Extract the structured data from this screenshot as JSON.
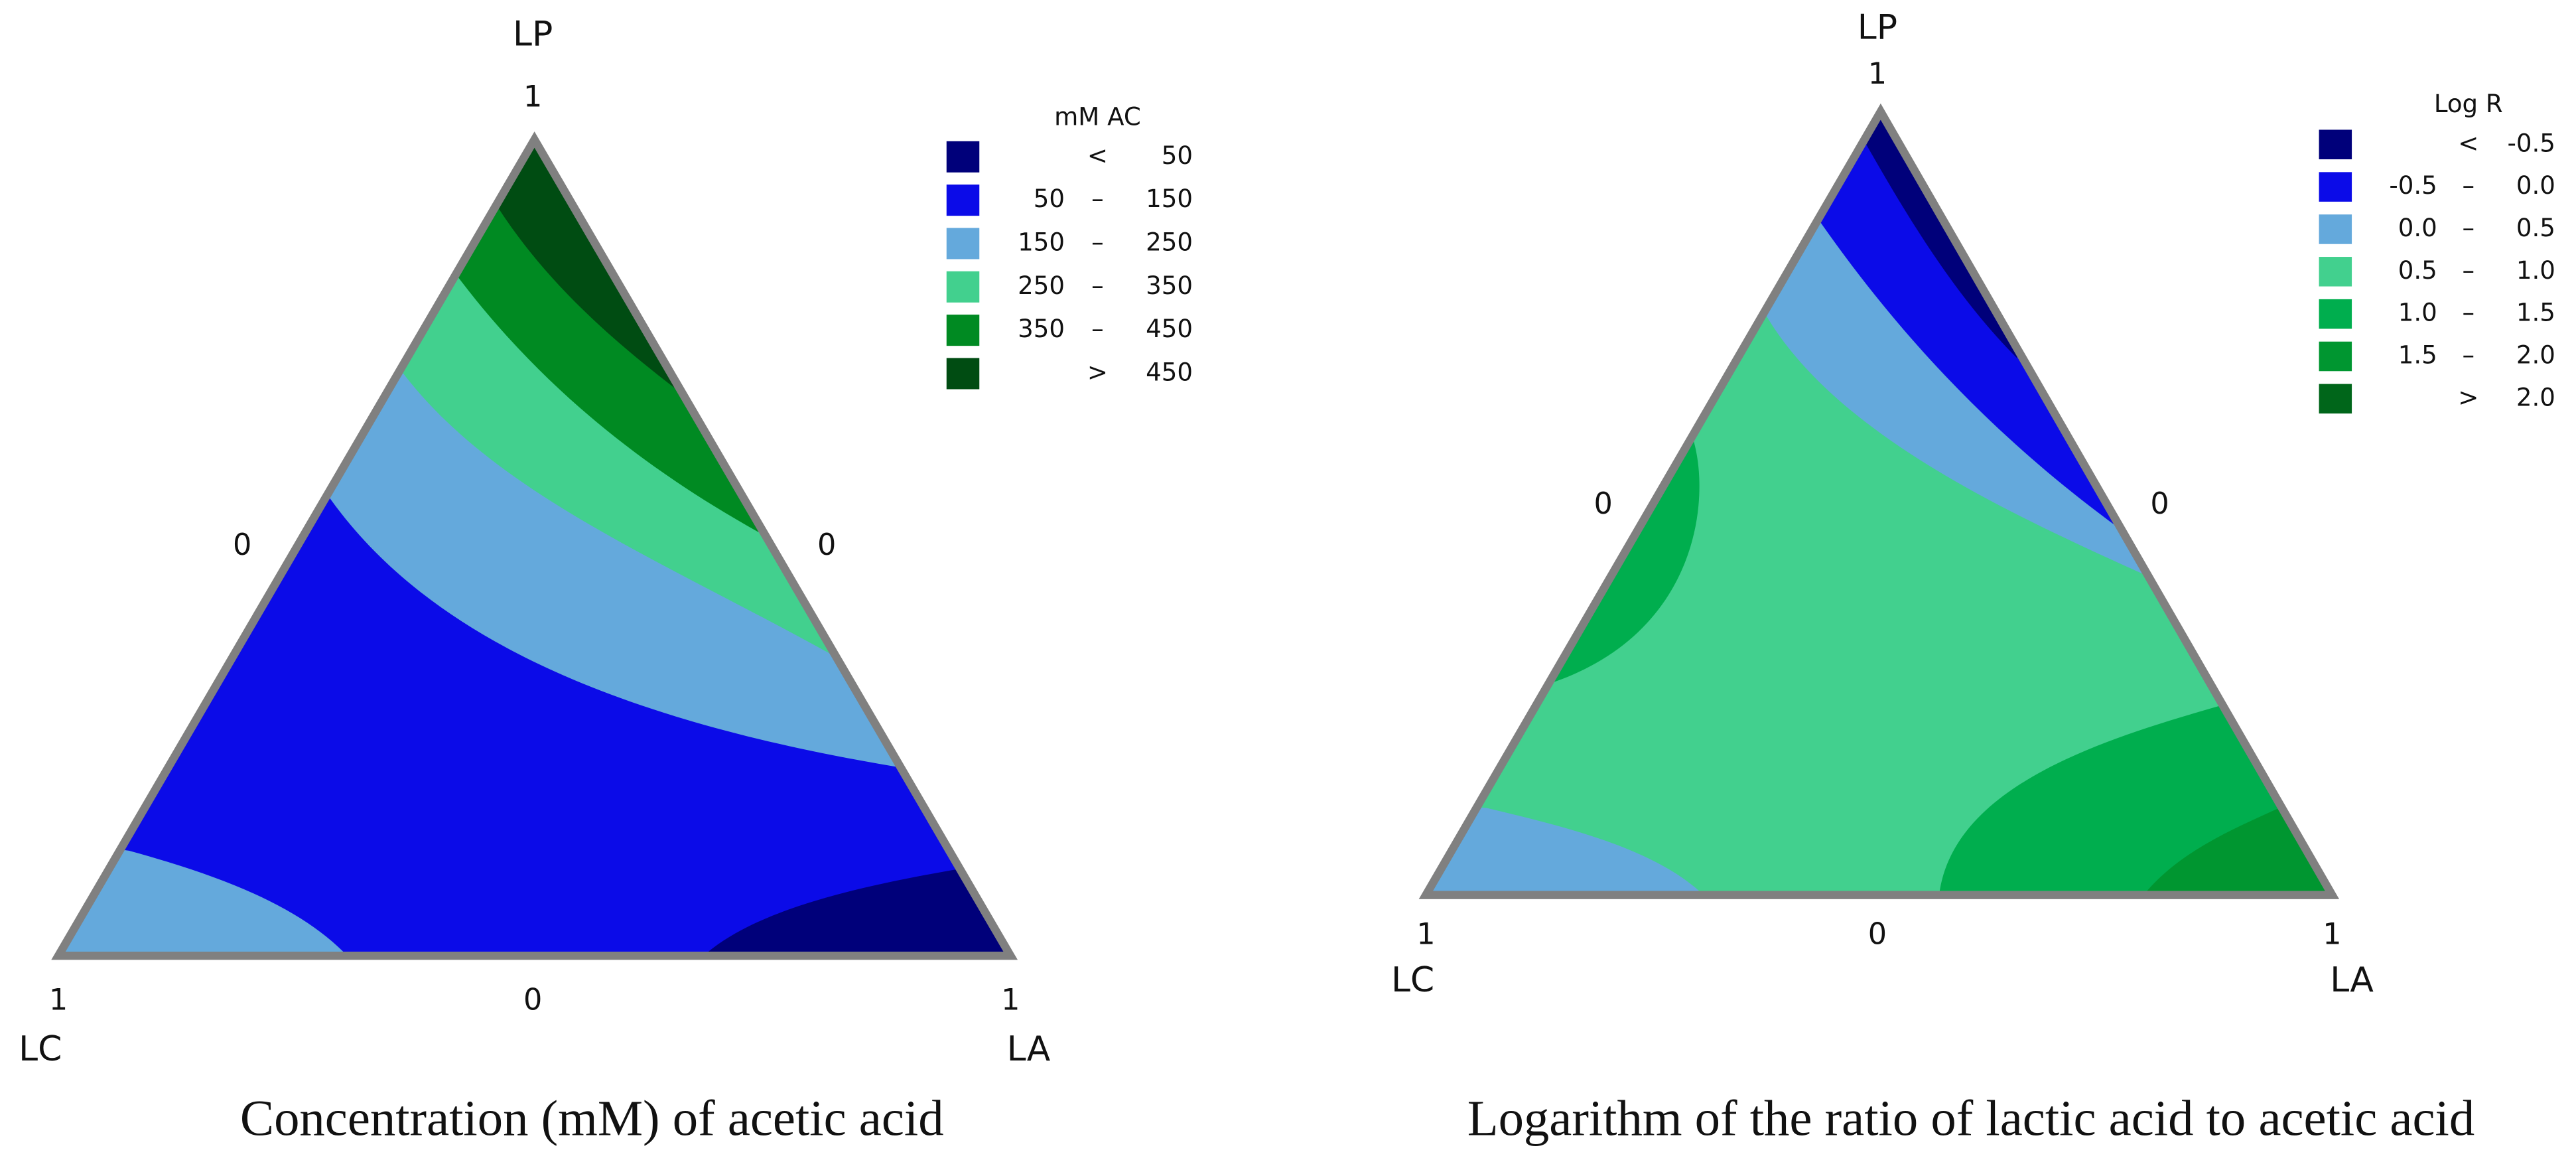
{
  "chart_data": [
    {
      "type": "ternary-contour",
      "title": "Concentration (mM) of acetic acid",
      "vertices": {
        "top": "LP",
        "left": "LC",
        "right": "LA"
      },
      "edge_labels": {
        "top": 1,
        "left_mid": 0,
        "right_mid": 0,
        "bottom_left": 1,
        "bottom_mid": 0,
        "bottom_right": 1
      },
      "legend": {
        "title": "mM AC",
        "levels": [
          {
            "color": "#00007a",
            "sep": "<",
            "to": 50
          },
          {
            "color": "#0b0be8",
            "from": 50,
            "sep": "–",
            "to": 150
          },
          {
            "color": "#64a9dc",
            "from": 150,
            "sep": "–",
            "to": 250
          },
          {
            "color": "#42d08e",
            "from": 250,
            "sep": "–",
            "to": 350
          },
          {
            "color": "#008a22",
            "from": 350,
            "sep": "–",
            "to": 450
          },
          {
            "color": "#004c12",
            "sep": ">",
            "to": 450
          }
        ]
      }
    },
    {
      "type": "ternary-contour",
      "title": "Logarithm of the ratio of lactic acid to acetic acid",
      "vertices": {
        "top": "LP",
        "left": "LC",
        "right": "LA"
      },
      "edge_labels": {
        "top": 1,
        "left_mid": 0,
        "right_mid": 0,
        "bottom_left": 1,
        "bottom_mid": 0,
        "bottom_right": 1
      },
      "legend": {
        "title": "Log R",
        "levels": [
          {
            "color": "#00007a",
            "sep": "<",
            "to": "-0.5"
          },
          {
            "color": "#0b0be8",
            "from": "-0.5",
            "sep": "–",
            "to": "0.0"
          },
          {
            "color": "#64a9dc",
            "from": "0.0",
            "sep": "–",
            "to": "0.5"
          },
          {
            "color": "#42d08e",
            "from": "0.5",
            "sep": "–",
            "to": "1.0"
          },
          {
            "color": "#00ae4e",
            "from": "1.0",
            "sep": "–",
            "to": "1.5"
          },
          {
            "color": "#009630",
            "from": "1.5",
            "sep": "–",
            "to": "2.0"
          },
          {
            "color": "#00661a",
            "sep": ">",
            "to": "2.0"
          }
        ]
      }
    }
  ]
}
